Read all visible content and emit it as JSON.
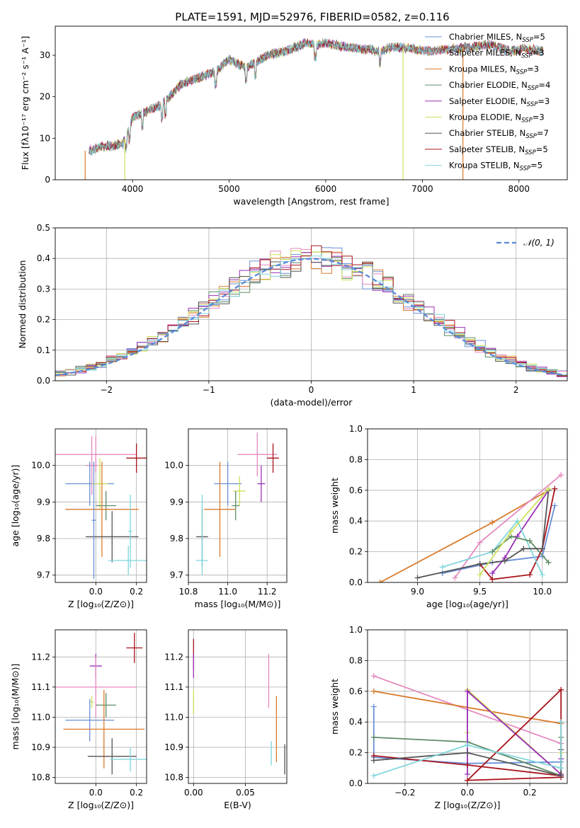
{
  "title": "PLATE=1591, MJD=52976, FIBERID=0582, z=0.116",
  "chart_data": [
    {
      "type": "line",
      "id": "spectrum",
      "xlabel": "wavelength [Angstrom, rest frame]",
      "ylabel": "Flux [fλ10⁻¹⁷ erg cm⁻² s⁻¹ A⁻¹]",
      "xlim": [
        3200,
        8500
      ],
      "ylim": [
        0,
        37
      ],
      "xticks": [
        4000,
        5000,
        6000,
        7000,
        8000
      ],
      "yticks": [
        0,
        10,
        20,
        30
      ],
      "grid": false,
      "legend_position": "right",
      "series_anchor": {
        "x": [
          3550,
          3700,
          3900,
          4000,
          4300,
          4500,
          4860,
          5000,
          5175,
          5400,
          5600,
          5800,
          5900,
          6000,
          6200,
          6560,
          6700,
          6900,
          7100,
          7300,
          7500,
          7700,
          7900,
          8050,
          8250
        ],
        "y": [
          7,
          8,
          8.5,
          15,
          18,
          23,
          26,
          29,
          27,
          30,
          31,
          33,
          32.5,
          33,
          32,
          31,
          32,
          31.5,
          31,
          31.5,
          32,
          32.5,
          31,
          31.5,
          31
        ]
      },
      "series": [
        {
          "name": "Chabrier MILES, N_SSP=5",
          "label_main": "Chabrier MILES, N",
          "label_sub": "SSP",
          "label_tail": "=5",
          "color": "#6a8fd8"
        },
        {
          "name": "Salpeter MILES, N_SSP=3",
          "label_main": "Salpeter MILES, N",
          "label_sub": "SSP",
          "label_tail": "=3",
          "color": "#e58ac0"
        },
        {
          "name": "Kroupa MILES, N_SSP=3",
          "label_main": "Kroupa MILES, N",
          "label_sub": "SSP",
          "label_tail": "=3",
          "color": "#d97a2b"
        },
        {
          "name": "Chabrier ELODIE, N_SSP=4",
          "label_main": "Chabrier ELODIE, N",
          "label_sub": "SSP",
          "label_tail": "=4",
          "color": "#5e8c66"
        },
        {
          "name": "Salpeter ELODIE, N_SSP=3",
          "label_main": "Salpeter ELODIE, N",
          "label_sub": "SSP",
          "label_tail": "=3",
          "color": "#9b30b8"
        },
        {
          "name": "Kroupa ELODIE, N_SSP=3",
          "label_main": "Kroupa ELODIE, N",
          "label_sub": "SSP",
          "label_tail": "=3",
          "color": "#cde05a"
        },
        {
          "name": "Chabrier STELIB, N_SSP=7",
          "label_main": "Chabrier STELIB, N",
          "label_sub": "SSP",
          "label_tail": "=7",
          "color": "#555555"
        },
        {
          "name": "Salpeter STELIB, N_SSP=5",
          "label_main": "Salpeter STELIB, N",
          "label_sub": "SSP",
          "label_tail": "=5",
          "color": "#a8141c"
        },
        {
          "name": "Kroupa STELIB, N_SSP=5",
          "label_main": "Kroupa STELIB, N",
          "label_sub": "SSP",
          "label_tail": "=5",
          "color": "#7fd6dc"
        }
      ],
      "vertical_drops": [
        {
          "x": 3510,
          "color": "#d97a2b"
        },
        {
          "x": 3920,
          "color": "#cde05a"
        },
        {
          "x": 6800,
          "color": "#cde05a"
        },
        {
          "x": 7420,
          "color": "#d97a2b"
        }
      ]
    },
    {
      "type": "histogram",
      "id": "residuals",
      "xlabel": "(data-model)/error",
      "ylabel": "Normed distribution",
      "xlim": [
        -2.5,
        2.5
      ],
      "ylim": [
        0,
        0.5
      ],
      "xticks": [
        -2,
        -1,
        0,
        1,
        2
      ],
      "yticks": [
        0.0,
        0.1,
        0.2,
        0.3,
        0.4,
        0.5
      ],
      "grid": true,
      "bin_width": 0.1,
      "legend": {
        "label": "𝒩(0, 1)",
        "position": "upper right",
        "style": "dashed",
        "color": "#5a8ad8"
      },
      "curve": {
        "mean": 0,
        "sigma": 1
      }
    },
    {
      "type": "scatter",
      "id": "age-vs-Z",
      "xlabel": "Z [log₁₀(Z/Z⊙)]",
      "ylabel": "age  [log₁₀(age/yr)]",
      "xlim": [
        -0.2,
        0.25
      ],
      "ylim": [
        9.68,
        10.1
      ],
      "xticks": [
        0.0,
        0.2
      ],
      "yticks": [
        9.7,
        9.8,
        9.9,
        10.0
      ],
      "grid": true,
      "points": [
        {
          "x": 0.0,
          "xerr": 0.2,
          "y": 10.03,
          "yerr": 0.05,
          "color": "#e58ac0"
        },
        {
          "x": -0.02,
          "xerr": 0.03,
          "y": 10.0,
          "yerr": 0.08,
          "color": "#e58ac0"
        },
        {
          "x": 0.2,
          "xerr": 0.05,
          "y": 10.02,
          "yerr": 0.04,
          "color": "#a8141c"
        },
        {
          "x": -0.03,
          "xerr": 0.12,
          "y": 9.95,
          "yerr": 0.06,
          "color": "#6a8fd8"
        },
        {
          "x": 0.02,
          "xerr": 0.04,
          "y": 9.95,
          "yerr": 0.07,
          "color": "#cde05a"
        },
        {
          "x": 0.05,
          "xerr": 0.05,
          "y": 9.89,
          "yerr": 0.04,
          "color": "#5e8c66"
        },
        {
          "x": 0.03,
          "xerr": 0.18,
          "y": 9.88,
          "yerr": 0.13,
          "color": "#d97a2b"
        },
        {
          "x": 0.08,
          "xerr": 0.13,
          "y": 9.805,
          "yerr": 0.07,
          "color": "#555555"
        },
        {
          "x": 0.16,
          "xerr": 0.1,
          "y": 9.74,
          "yerr": 0.04,
          "color": "#7fd6dc"
        },
        {
          "x": 0.17,
          "xerr": 0.01,
          "y": 9.82,
          "yerr": 0.1,
          "color": "#7fd6dc"
        },
        {
          "x": -0.01,
          "xerr": 0.01,
          "y": 9.85,
          "yerr": 0.16,
          "color": "#6a8fd8"
        }
      ]
    },
    {
      "type": "scatter",
      "id": "age-vs-mass",
      "xlabel": "mass [log₁₀(M/M⊙)]",
      "ylabel": "",
      "xlim": [
        10.8,
        11.3
      ],
      "ylim": [
        9.68,
        10.1
      ],
      "xticks": [
        10.8,
        11.0,
        11.2
      ],
      "yticks": [
        9.7,
        9.8,
        9.9,
        10.0
      ],
      "grid": true,
      "points": [
        {
          "x": 11.15,
          "xerr": 0.1,
          "y": 10.03,
          "yerr": 0.06,
          "color": "#e58ac0"
        },
        {
          "x": 11.23,
          "xerr": 0.03,
          "y": 10.02,
          "yerr": 0.04,
          "color": "#a8141c"
        },
        {
          "x": 11.17,
          "xerr": 0.02,
          "y": 9.95,
          "yerr": 0.05,
          "color": "#9b30b8"
        },
        {
          "x": 11.0,
          "xerr": 0.07,
          "y": 9.95,
          "yerr": 0.06,
          "color": "#6a8fd8"
        },
        {
          "x": 11.06,
          "xerr": 0.03,
          "y": 9.93,
          "yerr": 0.04,
          "color": "#cde05a"
        },
        {
          "x": 11.04,
          "xerr": 0.02,
          "y": 9.89,
          "yerr": 0.04,
          "color": "#5e8c66"
        },
        {
          "x": 10.96,
          "xerr": 0.08,
          "y": 9.88,
          "yerr": 0.13,
          "color": "#d97a2b"
        },
        {
          "x": 10.87,
          "xerr": 0.03,
          "y": 9.805,
          "yerr": 0.08,
          "color": "#555555"
        },
        {
          "x": 10.87,
          "xerr": 0.03,
          "y": 9.74,
          "yerr": 0.04,
          "color": "#7fd6dc"
        },
        {
          "x": 10.87,
          "xerr": 0.0,
          "y": 9.82,
          "yerr": 0.1,
          "color": "#7fd6dc"
        }
      ]
    },
    {
      "type": "line",
      "id": "mass-weight-vs-age",
      "xlabel": "age  [log₁₀(age/yr)]",
      "ylabel": "mass weight",
      "xlim": [
        8.6,
        10.2
      ],
      "ylim": [
        0,
        1
      ],
      "xticks": [
        9.0,
        9.5,
        10.0
      ],
      "yticks": [
        0.0,
        0.2,
        0.4,
        0.6,
        0.8,
        1.0
      ],
      "grid": true,
      "series": [
        {
          "color": "#d97a2b",
          "x": [
            8.7,
            9.6,
            10.05
          ],
          "y": [
            0.0,
            0.39,
            0.6
          ]
        },
        {
          "color": "#e58ac0",
          "x": [
            9.3,
            9.5,
            10.15
          ],
          "y": [
            0.03,
            0.26,
            0.7
          ]
        },
        {
          "color": "#6a8fd8",
          "x": [
            9.2,
            9.6,
            10.0,
            10.1
          ],
          "y": [
            0.06,
            0.13,
            0.17,
            0.5
          ]
        },
        {
          "color": "#a8141c",
          "x": [
            9.5,
            9.6,
            9.9,
            10.0,
            10.1
          ],
          "y": [
            0.12,
            0.02,
            0.05,
            0.22,
            0.61
          ]
        },
        {
          "color": "#9b30b8",
          "x": [
            9.6,
            9.7,
            9.8,
            10.05
          ],
          "y": [
            0.06,
            0.16,
            0.3,
            0.6
          ]
        },
        {
          "color": "#7fd6dc",
          "x": [
            9.2,
            9.6,
            9.8,
            10.0
          ],
          "y": [
            0.1,
            0.2,
            0.4,
            0.05
          ]
        },
        {
          "color": "#5e8c66",
          "x": [
            9.6,
            9.75,
            9.9,
            10.05
          ],
          "y": [
            0.2,
            0.3,
            0.27,
            0.13
          ]
        },
        {
          "color": "#555555",
          "x": [
            9.0,
            9.5,
            9.7,
            9.85,
            10.0,
            10.05
          ],
          "y": [
            0.03,
            0.12,
            0.14,
            0.22,
            0.22,
            0.6
          ]
        },
        {
          "color": "#cde05a",
          "x": [
            9.5,
            9.75,
            10.05
          ],
          "y": [
            0.05,
            0.33,
            0.61
          ]
        }
      ]
    },
    {
      "type": "scatter",
      "id": "mass-vs-Z",
      "xlabel": "Z [log₁₀(Z/Z⊙)]",
      "ylabel": "mass [log₁₀(M/M⊙)]",
      "xlim": [
        -0.2,
        0.25
      ],
      "ylim": [
        10.78,
        11.29
      ],
      "xticks": [
        0.0,
        0.2
      ],
      "yticks": [
        10.8,
        10.9,
        11.0,
        11.1,
        11.2
      ],
      "grid": true,
      "points": [
        {
          "x": 0.19,
          "xerr": 0.04,
          "y": 11.23,
          "yerr": 0.05,
          "color": "#a8141c"
        },
        {
          "x": 0.0,
          "xerr": 0.03,
          "y": 11.17,
          "yerr": 0.04,
          "color": "#9b30b8"
        },
        {
          "x": 0.0,
          "xerr": 0.2,
          "y": 11.1,
          "yerr": 0.1,
          "color": "#e58ac0"
        },
        {
          "x": -0.02,
          "xerr": 0.01,
          "y": 11.05,
          "yerr": 0.02,
          "color": "#cde05a"
        },
        {
          "x": 0.05,
          "xerr": 0.05,
          "y": 11.04,
          "yerr": 0.04,
          "color": "#5e8c66"
        },
        {
          "x": -0.03,
          "xerr": 0.12,
          "y": 10.99,
          "yerr": 0.07,
          "color": "#6a8fd8"
        },
        {
          "x": 0.04,
          "xerr": 0.2,
          "y": 10.96,
          "yerr": 0.13,
          "color": "#d97a2b"
        },
        {
          "x": 0.08,
          "xerr": 0.12,
          "y": 10.87,
          "yerr": 0.06,
          "color": "#555555"
        },
        {
          "x": 0.17,
          "xerr": 0.1,
          "y": 10.86,
          "yerr": 0.04,
          "color": "#7fd6dc"
        }
      ]
    },
    {
      "type": "scatter",
      "id": "mass-vs-EBV",
      "xlabel": "E(B-V)",
      "ylabel": "",
      "xlim": [
        -0.005,
        0.09
      ],
      "ylim": [
        10.78,
        11.29
      ],
      "xticks": [
        0.0,
        0.05
      ],
      "yticks": [
        10.8,
        10.9,
        11.0,
        11.1,
        11.2
      ],
      "grid": true,
      "points": [
        {
          "x": 0.0,
          "xerr": 0.0,
          "y": 11.21,
          "yerr": 0.05,
          "color": "#a8141c"
        },
        {
          "x": 0.0,
          "xerr": 0.0,
          "y": 11.17,
          "yerr": 0.04,
          "color": "#9b30b8"
        },
        {
          "x": 0.0,
          "xerr": 0.0,
          "y": 11.05,
          "yerr": 0.04,
          "color": "#cde05a"
        },
        {
          "x": 0.0725,
          "xerr": 0.0,
          "y": 11.12,
          "yerr": 0.09,
          "color": "#e58ac0"
        },
        {
          "x": 0.075,
          "xerr": 0.0,
          "y": 10.88,
          "yerr": 0.04,
          "color": "#7fd6dc"
        },
        {
          "x": 0.08,
          "xerr": 0.0,
          "y": 10.96,
          "yerr": 0.11,
          "color": "#d97a2b"
        },
        {
          "x": 0.088,
          "xerr": 0.0,
          "y": 10.86,
          "yerr": 0.05,
          "color": "#555555"
        }
      ]
    },
    {
      "type": "line",
      "id": "mass-weight-vs-Z",
      "xlabel": "Z [log₁₀(Z/Z⊙)]",
      "ylabel": "mass weight",
      "xlim": [
        -0.32,
        0.32
      ],
      "ylim": [
        0,
        1
      ],
      "xticks": [
        -0.2,
        0.0,
        0.2
      ],
      "yticks": [
        0.0,
        0.2,
        0.4,
        0.6,
        0.8,
        1.0
      ],
      "grid": true,
      "series": [
        {
          "color": "#e58ac0",
          "x": [
            -0.3,
            0.3
          ],
          "y": [
            0.7,
            0.26
          ]
        },
        {
          "color": "#d97a2b",
          "x": [
            -0.3,
            0.3
          ],
          "y": [
            0.6,
            0.39
          ]
        },
        {
          "color": "#6a8fd8",
          "x": [
            -0.3,
            -0.3,
            0.0,
            0.3
          ],
          "y": [
            0.5,
            0.17,
            0.13,
            0.14
          ]
        },
        {
          "color": "#5e8c66",
          "x": [
            -0.3,
            0.0,
            0.3,
            0.3
          ],
          "y": [
            0.3,
            0.27,
            0.05,
            0.3
          ]
        },
        {
          "color": "#cde05a",
          "x": [
            0.0,
            0.0,
            0.3,
            0.3
          ],
          "y": [
            0.33,
            0.61,
            0.06,
            0.2
          ]
        },
        {
          "color": "#9b30b8",
          "x": [
            0.0,
            0.0,
            0.3,
            0.3
          ],
          "y": [
            0.06,
            0.6,
            0.06,
            0.16
          ]
        },
        {
          "color": "#a8141c",
          "x": [
            -0.3,
            0.0,
            0.3,
            0.3,
            0.0,
            0.3
          ],
          "y": [
            0.18,
            0.12,
            0.05,
            0.61,
            0.02,
            0.04
          ]
        },
        {
          "color": "#555555",
          "x": [
            -0.3,
            0.0,
            0.3,
            0.3
          ],
          "y": [
            0.15,
            0.2,
            0.05,
            0.22
          ]
        },
        {
          "color": "#7fd6dc",
          "x": [
            -0.3,
            0.0,
            0.3,
            0.3
          ],
          "y": [
            0.05,
            0.25,
            0.1,
            0.4
          ]
        }
      ]
    }
  ]
}
